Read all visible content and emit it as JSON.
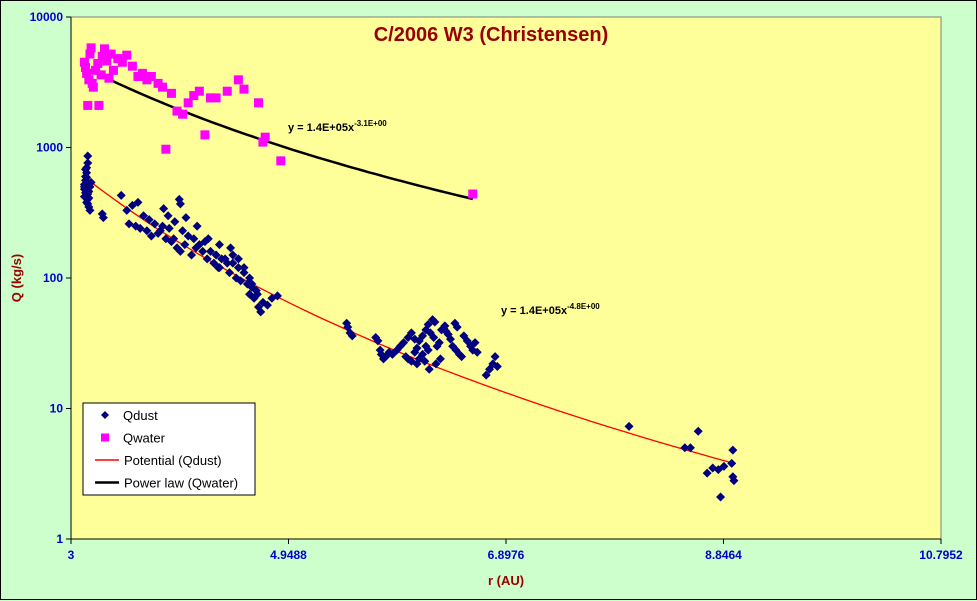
{
  "chart_data": {
    "type": "scatter",
    "title": "C/2006 W3 (Christensen)",
    "xlabel": "r (AU)",
    "ylabel": "Q (kg/s)",
    "x_ticks": [
      "3",
      "4.9488",
      "6.8976",
      "8.8464",
      "10.7952"
    ],
    "y_ticks": [
      "1",
      "10",
      "100",
      "1000",
      "10000"
    ],
    "xlim": [
      3,
      10.7952
    ],
    "ylim": [
      1,
      10000
    ],
    "y_scale": "log",
    "grid": false,
    "plot_background": "#ffff99",
    "legend_position": "bottom-left",
    "series": [
      {
        "name": "Qdust",
        "kind": "scatter",
        "marker": "diamond",
        "color": "#000080",
        "points": [
          [
            3.12,
            480
          ],
          [
            3.12,
            520
          ],
          [
            3.13,
            560
          ],
          [
            3.13,
            600
          ],
          [
            3.14,
            640
          ],
          [
            3.14,
            700
          ],
          [
            3.15,
            760
          ],
          [
            3.15,
            860
          ],
          [
            3.12,
            420
          ],
          [
            3.13,
            450
          ],
          [
            3.14,
            380
          ],
          [
            3.15,
            400
          ],
          [
            3.16,
            350
          ],
          [
            3.17,
            330
          ],
          [
            3.16,
            460
          ],
          [
            3.17,
            500
          ],
          [
            3.18,
            540
          ],
          [
            3.14,
            590
          ],
          [
            3.13,
            680
          ],
          [
            3.15,
            440
          ],
          [
            3.16,
            410
          ],
          [
            3.12,
            500
          ],
          [
            3.14,
            530
          ],
          [
            3.15,
            370
          ],
          [
            3.28,
            310
          ],
          [
            3.29,
            290
          ],
          [
            3.45,
            430
          ],
          [
            3.5,
            330
          ],
          [
            3.55,
            360
          ],
          [
            3.6,
            380
          ],
          [
            3.65,
            300
          ],
          [
            3.7,
            280
          ],
          [
            3.75,
            260
          ],
          [
            3.8,
            230
          ],
          [
            3.85,
            200
          ],
          [
            3.9,
            190
          ],
          [
            3.95,
            170
          ],
          [
            4.0,
            230
          ],
          [
            4.05,
            210
          ],
          [
            4.1,
            200
          ],
          [
            4.15,
            180
          ],
          [
            4.2,
            190
          ],
          [
            4.25,
            160
          ],
          [
            4.3,
            150
          ],
          [
            4.35,
            140
          ],
          [
            4.4,
            130
          ],
          [
            4.45,
            150
          ],
          [
            4.5,
            120
          ],
          [
            4.55,
            110
          ],
          [
            4.6,
            100
          ],
          [
            3.52,
            260
          ],
          [
            3.58,
            250
          ],
          [
            3.62,
            240
          ],
          [
            3.68,
            230
          ],
          [
            3.72,
            210
          ],
          [
            3.78,
            220
          ],
          [
            3.82,
            250
          ],
          [
            3.88,
            240
          ],
          [
            3.92,
            200
          ],
          [
            3.98,
            160
          ],
          [
            4.02,
            180
          ],
          [
            4.08,
            150
          ],
          [
            4.12,
            170
          ],
          [
            4.18,
            160
          ],
          [
            4.22,
            140
          ],
          [
            4.28,
            130
          ],
          [
            4.32,
            120
          ],
          [
            4.38,
            140
          ],
          [
            4.42,
            110
          ],
          [
            4.48,
            100
          ],
          [
            4.52,
            95
          ],
          [
            4.58,
            90
          ],
          [
            4.62,
            85
          ],
          [
            4.66,
            80
          ],
          [
            3.83,
            340
          ],
          [
            3.87,
            300
          ],
          [
            3.93,
            270
          ],
          [
            4.03,
            290
          ],
          [
            4.13,
            250
          ],
          [
            4.23,
            200
          ],
          [
            4.33,
            180
          ],
          [
            4.43,
            170
          ],
          [
            3.97,
            400
          ],
          [
            3.98,
            370
          ],
          [
            4.33,
            120
          ],
          [
            4.45,
            130
          ],
          [
            4.5,
            140
          ],
          [
            4.55,
            120
          ],
          [
            4.6,
            75
          ],
          [
            4.64,
            70
          ],
          [
            4.68,
            60
          ],
          [
            4.7,
            55
          ],
          [
            4.72,
            65
          ],
          [
            4.76,
            62
          ],
          [
            4.8,
            70
          ],
          [
            4.85,
            73
          ],
          [
            4.62,
            90
          ],
          [
            4.67,
            75
          ],
          [
            5.47,
            45
          ],
          [
            5.48,
            42
          ],
          [
            5.5,
            38
          ],
          [
            5.52,
            36
          ],
          [
            5.73,
            35
          ],
          [
            5.75,
            33
          ],
          [
            5.77,
            28
          ],
          [
            5.78,
            26
          ],
          [
            5.8,
            24
          ],
          [
            5.82,
            25
          ],
          [
            5.85,
            27
          ],
          [
            5.88,
            26
          ],
          [
            5.92,
            28
          ],
          [
            5.95,
            30
          ],
          [
            5.98,
            32
          ],
          [
            6.0,
            25
          ],
          [
            6.02,
            24
          ],
          [
            6.05,
            23
          ],
          [
            6.08,
            27
          ],
          [
            6.1,
            29
          ],
          [
            6.12,
            33
          ],
          [
            6.15,
            36
          ],
          [
            6.18,
            40
          ],
          [
            6.2,
            44
          ],
          [
            6.22,
            38
          ],
          [
            6.25,
            35
          ],
          [
            6.28,
            30
          ],
          [
            6.3,
            32
          ],
          [
            6.32,
            40
          ],
          [
            6.35,
            43
          ],
          [
            6.38,
            37
          ],
          [
            6.4,
            34
          ],
          [
            6.42,
            30
          ],
          [
            6.45,
            28
          ],
          [
            6.48,
            26
          ],
          [
            6.5,
            25
          ],
          [
            6.02,
            35
          ],
          [
            6.05,
            38
          ],
          [
            6.08,
            34
          ],
          [
            6.1,
            22
          ],
          [
            6.12,
            24
          ],
          [
            6.15,
            26
          ],
          [
            6.18,
            30
          ],
          [
            6.2,
            28
          ],
          [
            6.24,
            48
          ],
          [
            6.26,
            46
          ],
          [
            6.34,
            41
          ],
          [
            6.36,
            39
          ],
          [
            6.44,
            45
          ],
          [
            6.46,
            42
          ],
          [
            6.52,
            36
          ],
          [
            6.55,
            33
          ],
          [
            6.58,
            30
          ],
          [
            6.6,
            28
          ],
          [
            6.62,
            32
          ],
          [
            6.64,
            27
          ],
          [
            6.17,
            23
          ],
          [
            6.21,
            20
          ],
          [
            6.27,
            22
          ],
          [
            6.31,
            24
          ],
          [
            6.72,
            18
          ],
          [
            6.75,
            20
          ],
          [
            6.78,
            22
          ],
          [
            6.8,
            25
          ],
          [
            6.82,
            21
          ],
          [
            8.0,
            7.3
          ],
          [
            8.5,
            5.0
          ],
          [
            8.55,
            5.0
          ],
          [
            8.62,
            6.7
          ],
          [
            8.7,
            3.2
          ],
          [
            8.75,
            3.5
          ],
          [
            8.8,
            3.4
          ],
          [
            8.82,
            2.1
          ],
          [
            8.85,
            3.6
          ],
          [
            8.92,
            3.8
          ],
          [
            8.93,
            4.8
          ],
          [
            8.93,
            3.0
          ],
          [
            8.94,
            2.8
          ]
        ]
      },
      {
        "name": "Qwater",
        "kind": "scatter",
        "marker": "square",
        "color": "#ff00ff",
        "points": [
          [
            3.12,
            4500
          ],
          [
            3.13,
            4100
          ],
          [
            3.14,
            3700
          ],
          [
            3.15,
            2100
          ],
          [
            3.16,
            3300
          ],
          [
            3.17,
            5200
          ],
          [
            3.18,
            5800
          ],
          [
            3.19,
            3100
          ],
          [
            3.2,
            2900
          ],
          [
            3.22,
            3900
          ],
          [
            3.24,
            4400
          ],
          [
            3.25,
            2100
          ],
          [
            3.27,
            3600
          ],
          [
            3.28,
            5000
          ],
          [
            3.3,
            5700
          ],
          [
            3.32,
            4600
          ],
          [
            3.34,
            3400
          ],
          [
            3.36,
            5200
          ],
          [
            3.38,
            3900
          ],
          [
            3.42,
            4800
          ],
          [
            3.46,
            4500
          ],
          [
            3.5,
            5100
          ],
          [
            3.55,
            4200
          ],
          [
            3.6,
            3500
          ],
          [
            3.64,
            3700
          ],
          [
            3.68,
            3300
          ],
          [
            3.72,
            3500
          ],
          [
            3.78,
            3100
          ],
          [
            3.82,
            2900
          ],
          [
            3.85,
            970
          ],
          [
            3.9,
            2600
          ],
          [
            3.95,
            1900
          ],
          [
            4.0,
            1800
          ],
          [
            4.05,
            2200
          ],
          [
            4.1,
            2500
          ],
          [
            4.15,
            2700
          ],
          [
            4.2,
            1250
          ],
          [
            4.25,
            2400
          ],
          [
            4.3,
            2400
          ],
          [
            4.4,
            2700
          ],
          [
            4.5,
            3300
          ],
          [
            4.55,
            2800
          ],
          [
            4.68,
            2200
          ],
          [
            4.72,
            1100
          ],
          [
            4.74,
            1200
          ],
          [
            4.88,
            790
          ],
          [
            6.6,
            440
          ]
        ]
      },
      {
        "name": "Potential (Qdust)",
        "kind": "fit",
        "color": "#ff0000",
        "x_range": [
          3.12,
          8.93
        ],
        "coefficient": 140000,
        "exponent": -4.8
      },
      {
        "name": "Power law (Qwater)",
        "kind": "fit",
        "color": "#000000",
        "x_range": [
          3.12,
          6.6
        ],
        "coefficient": 140000,
        "exponent": -3.1
      }
    ],
    "annotations": [
      {
        "text": "y = 1.4E+05x",
        "superscript": "-3.1E+00"
      },
      {
        "text": "y = 1.4E+05x",
        "superscript": "-4.8E+00"
      }
    ]
  }
}
